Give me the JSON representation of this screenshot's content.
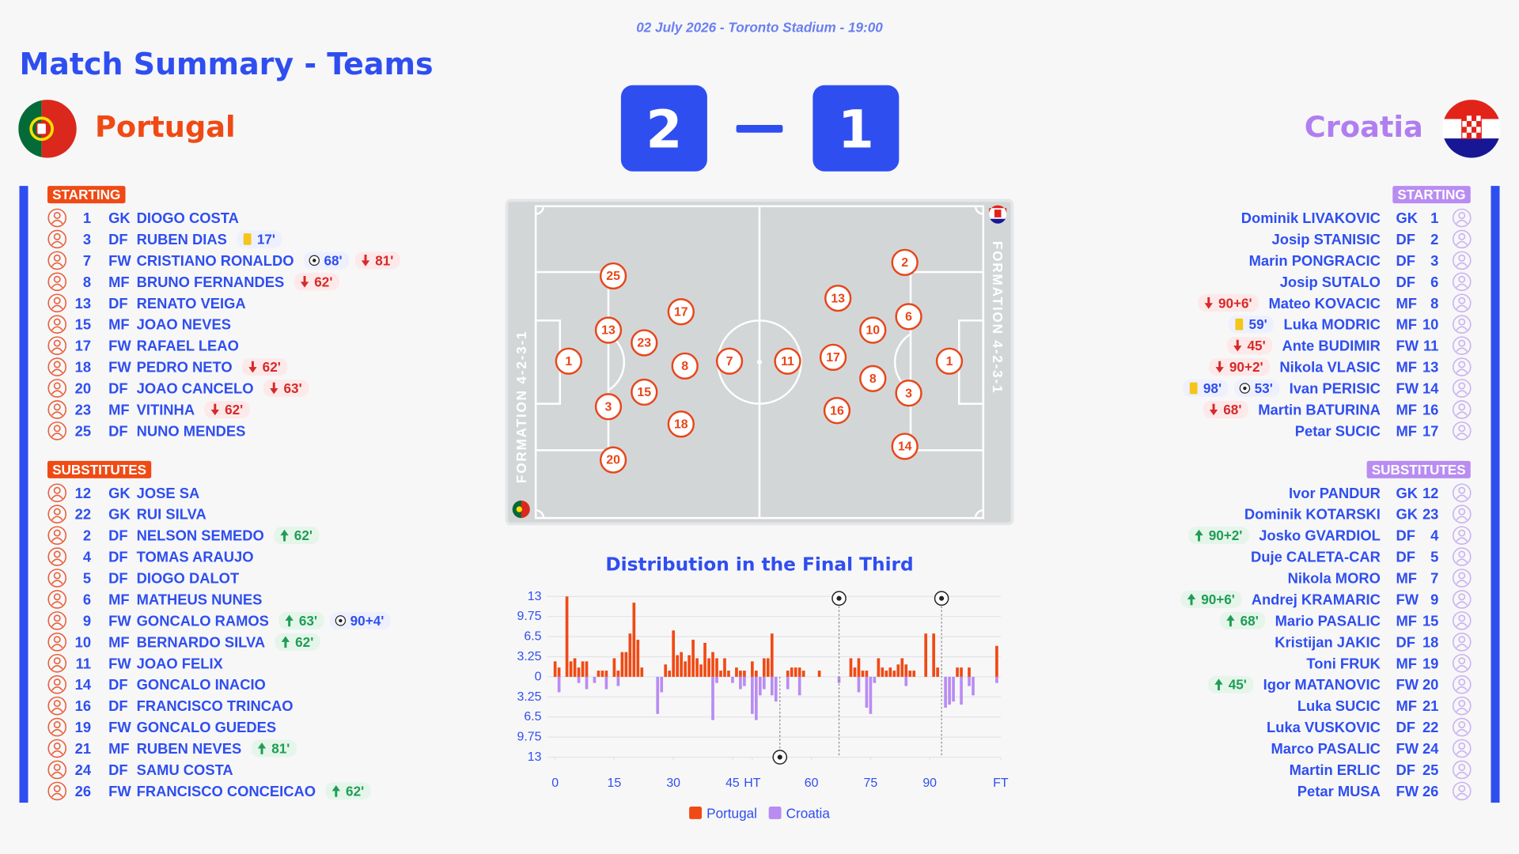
{
  "header": {
    "date_line": "02 July 2026 - Toronto Stadium - 19:00",
    "title": "Match Summary - Teams"
  },
  "home": {
    "name": "Portugal",
    "score": 2,
    "formation": "FORMATION 4-2-3-1",
    "starting_label": "STARTING",
    "substitutes_label": "SUBSTITUTES",
    "starting": [
      {
        "number": 1,
        "pos": "GK",
        "name": "DIOGO COSTA",
        "events": []
      },
      {
        "number": 3,
        "pos": "DF",
        "name": "RUBEN DIAS",
        "events": [
          {
            "type": "yellow",
            "minute": "17'"
          }
        ]
      },
      {
        "number": 7,
        "pos": "FW",
        "name": "CRISTIANO RONALDO",
        "events": [
          {
            "type": "goal",
            "minute": "68'"
          },
          {
            "type": "off",
            "minute": "81'"
          }
        ]
      },
      {
        "number": 8,
        "pos": "MF",
        "name": "BRUNO FERNANDES",
        "events": [
          {
            "type": "off",
            "minute": "62'"
          }
        ]
      },
      {
        "number": 13,
        "pos": "DF",
        "name": "RENATO VEIGA",
        "events": []
      },
      {
        "number": 15,
        "pos": "MF",
        "name": "JOAO NEVES",
        "events": []
      },
      {
        "number": 17,
        "pos": "FW",
        "name": "RAFAEL LEAO",
        "events": []
      },
      {
        "number": 18,
        "pos": "FW",
        "name": "PEDRO NETO",
        "events": [
          {
            "type": "off",
            "minute": "62'"
          }
        ]
      },
      {
        "number": 20,
        "pos": "DF",
        "name": "JOAO CANCELO",
        "events": [
          {
            "type": "off",
            "minute": "63'"
          }
        ]
      },
      {
        "number": 23,
        "pos": "MF",
        "name": "VITINHA",
        "events": [
          {
            "type": "off",
            "minute": "62'"
          }
        ]
      },
      {
        "number": 25,
        "pos": "DF",
        "name": "NUNO MENDES",
        "events": []
      }
    ],
    "substitutes": [
      {
        "number": 12,
        "pos": "GK",
        "name": "JOSE SA",
        "events": []
      },
      {
        "number": 22,
        "pos": "GK",
        "name": "RUI SILVA",
        "events": []
      },
      {
        "number": 2,
        "pos": "DF",
        "name": "NELSON SEMEDO",
        "events": [
          {
            "type": "on",
            "minute": "62'"
          }
        ]
      },
      {
        "number": 4,
        "pos": "DF",
        "name": "TOMAS ARAUJO",
        "events": []
      },
      {
        "number": 5,
        "pos": "DF",
        "name": "DIOGO DALOT",
        "events": []
      },
      {
        "number": 6,
        "pos": "MF",
        "name": "MATHEUS NUNES",
        "events": []
      },
      {
        "number": 9,
        "pos": "FW",
        "name": "GONCALO RAMOS",
        "events": [
          {
            "type": "on",
            "minute": "63'"
          },
          {
            "type": "goal",
            "minute": "90+4'"
          }
        ]
      },
      {
        "number": 10,
        "pos": "MF",
        "name": "BERNARDO SILVA",
        "events": [
          {
            "type": "on",
            "minute": "62'"
          }
        ]
      },
      {
        "number": 11,
        "pos": "FW",
        "name": "JOAO FELIX",
        "events": []
      },
      {
        "number": 14,
        "pos": "DF",
        "name": "GONCALO INACIO",
        "events": []
      },
      {
        "number": 16,
        "pos": "DF",
        "name": "FRANCISCO TRINCAO",
        "events": []
      },
      {
        "number": 19,
        "pos": "FW",
        "name": "GONCALO GUEDES",
        "events": []
      },
      {
        "number": 21,
        "pos": "MF",
        "name": "RUBEN NEVES",
        "events": [
          {
            "type": "on",
            "minute": "81'"
          }
        ]
      },
      {
        "number": 24,
        "pos": "DF",
        "name": "SAMU COSTA",
        "events": []
      },
      {
        "number": 26,
        "pos": "FW",
        "name": "FRANCISCO CONCEICAO",
        "events": [
          {
            "type": "on",
            "minute": "62'"
          }
        ]
      }
    ]
  },
  "away": {
    "name": "Croatia",
    "score": 1,
    "formation": "FORMATION 4-2-3-1",
    "starting_label": "STARTING",
    "substitutes_label": "SUBSTITUTES",
    "starting": [
      {
        "number": 1,
        "pos": "GK",
        "name": "Dominik LIVAKOVIC",
        "events": []
      },
      {
        "number": 2,
        "pos": "DF",
        "name": "Josip STANISIC",
        "events": []
      },
      {
        "number": 3,
        "pos": "DF",
        "name": "Marin PONGRACIC",
        "events": []
      },
      {
        "number": 6,
        "pos": "DF",
        "name": "Josip SUTALO",
        "events": []
      },
      {
        "number": 8,
        "pos": "MF",
        "name": "Mateo KOVACIC",
        "events": [
          {
            "type": "off",
            "minute": "90+6'"
          }
        ]
      },
      {
        "number": 10,
        "pos": "MF",
        "name": "Luka MODRIC",
        "events": [
          {
            "type": "yellow",
            "minute": "59'"
          }
        ]
      },
      {
        "number": 11,
        "pos": "FW",
        "name": "Ante BUDIMIR",
        "events": [
          {
            "type": "off",
            "minute": "45'"
          }
        ]
      },
      {
        "number": 13,
        "pos": "MF",
        "name": "Nikola VLASIC",
        "events": [
          {
            "type": "off",
            "minute": "90+2'"
          }
        ]
      },
      {
        "number": 14,
        "pos": "FW",
        "name": "Ivan PERISIC",
        "events": [
          {
            "type": "yellow",
            "minute": "98'"
          },
          {
            "type": "goal",
            "minute": "53'"
          }
        ]
      },
      {
        "number": 16,
        "pos": "MF",
        "name": "Martin BATURINA",
        "events": [
          {
            "type": "off",
            "minute": "68'"
          }
        ]
      },
      {
        "number": 17,
        "pos": "MF",
        "name": "Petar SUCIC",
        "events": []
      }
    ],
    "substitutes": [
      {
        "number": 12,
        "pos": "GK",
        "name": "Ivor PANDUR",
        "events": []
      },
      {
        "number": 23,
        "pos": "GK",
        "name": "Dominik KOTARSKI",
        "events": []
      },
      {
        "number": 4,
        "pos": "DF",
        "name": "Josko GVARDIOL",
        "events": [
          {
            "type": "on",
            "minute": "90+2'"
          }
        ]
      },
      {
        "number": 5,
        "pos": "DF",
        "name": "Duje CALETA-CAR",
        "events": []
      },
      {
        "number": 7,
        "pos": "MF",
        "name": "Nikola MORO",
        "events": []
      },
      {
        "number": 9,
        "pos": "FW",
        "name": "Andrej KRAMARIC",
        "events": [
          {
            "type": "on",
            "minute": "90+6'"
          }
        ]
      },
      {
        "number": 15,
        "pos": "MF",
        "name": "Mario PASALIC",
        "events": [
          {
            "type": "on",
            "minute": "68'"
          }
        ]
      },
      {
        "number": 18,
        "pos": "DF",
        "name": "Kristijan JAKIC",
        "events": []
      },
      {
        "number": 19,
        "pos": "MF",
        "name": "Toni FRUK",
        "events": []
      },
      {
        "number": 20,
        "pos": "FW",
        "name": "Igor MATANOVIC",
        "events": [
          {
            "type": "on",
            "minute": "45'"
          }
        ]
      },
      {
        "number": 21,
        "pos": "MF",
        "name": "Luka SUCIC",
        "events": []
      },
      {
        "number": 22,
        "pos": "DF",
        "name": "Luka VUSKOVIC",
        "events": []
      },
      {
        "number": 24,
        "pos": "FW",
        "name": "Marco PASALIC",
        "events": []
      },
      {
        "number": 25,
        "pos": "DF",
        "name": "Martin ERLIC",
        "events": []
      },
      {
        "number": 26,
        "pos": "FW",
        "name": "Petar MUSA",
        "events": []
      }
    ]
  },
  "chart_data": {
    "type": "bar",
    "title": "Distribution in the Final Third",
    "xlim": [
      0,
      113
    ],
    "xticks": [
      0,
      15,
      30,
      45,
      {
        "value": 50,
        "label": "HT"
      },
      {
        "value": 65,
        "label": "60"
      },
      {
        "value": 80,
        "label": "75"
      },
      {
        "value": 95,
        "label": "90"
      },
      {
        "value": 113,
        "label": "FT"
      }
    ],
    "ylim": [
      -13,
      13
    ],
    "yticks": [
      13,
      9.75,
      6.5,
      3.25,
      0,
      {
        "value": -3.25,
        "label": "3.25"
      },
      {
        "value": -6.5,
        "label": "6.5"
      },
      {
        "value": -9.75,
        "label": "9.75"
      },
      {
        "value": -13,
        "label": "13"
      }
    ],
    "grid": true,
    "legend": "bottom",
    "series": [
      {
        "name": "Portugal",
        "color": "#f04a14",
        "x": [
          0,
          1,
          3,
          4,
          5,
          6,
          7,
          8,
          11,
          12,
          13,
          15,
          16,
          17,
          18,
          19,
          20,
          21,
          22,
          28,
          29,
          30,
          31,
          32,
          33,
          34,
          35,
          36,
          37,
          38,
          39,
          40,
          41,
          42,
          43,
          44,
          46,
          47,
          48,
          50,
          51,
          53,
          54,
          55,
          59,
          60,
          61,
          62,
          63,
          67,
          75,
          76,
          77,
          78,
          79,
          82,
          83,
          84,
          85,
          86,
          87,
          88,
          89,
          90,
          91,
          94,
          96,
          97,
          102,
          103,
          105,
          112
        ],
        "values": [
          2.5,
          1.5,
          13,
          2.5,
          3,
          1.5,
          2.5,
          2.5,
          1,
          1,
          1,
          3,
          1,
          4,
          4,
          7,
          12,
          6,
          1.5,
          2,
          1,
          7.5,
          3.5,
          4,
          2.5,
          3.5,
          6,
          3,
          2,
          5.5,
          3,
          4,
          3,
          1,
          3,
          1,
          1.5,
          1,
          1,
          2.5,
          1,
          3,
          3,
          7,
          1,
          1.5,
          1.5,
          1.5,
          1,
          1,
          3,
          1.5,
          3,
          1,
          1,
          3,
          1.5,
          1,
          1.5,
          1,
          2,
          3,
          2,
          1,
          1,
          7,
          7,
          1.5,
          1.5,
          1.5,
          1.5,
          5
        ]
      },
      {
        "name": "Croatia",
        "color": "#b98cf2",
        "x": [
          1,
          6,
          8,
          10,
          13,
          16,
          26,
          27,
          40,
          41,
          45,
          47,
          48,
          50,
          51,
          52,
          53,
          55,
          56,
          59,
          62,
          72,
          77,
          79,
          80,
          81,
          89,
          99,
          100,
          101,
          103,
          105,
          106,
          112
        ],
        "values": [
          -2.5,
          -1,
          -2,
          -1,
          -2,
          -1.5,
          -6,
          -2.5,
          -7,
          -1,
          -1,
          -2,
          -1.5,
          -6,
          -7,
          -3,
          -2,
          -3,
          -4,
          -2,
          -3,
          -1,
          -2.5,
          -5,
          -6,
          -1,
          -1.5,
          -5,
          -4.5,
          -4,
          -4.5,
          -1.5,
          -3,
          -1
        ]
      }
    ],
    "goal_markers": [
      {
        "x": 72,
        "team": "home"
      },
      {
        "x": 98,
        "team": "home"
      },
      {
        "x": 57,
        "team": "away"
      }
    ]
  }
}
